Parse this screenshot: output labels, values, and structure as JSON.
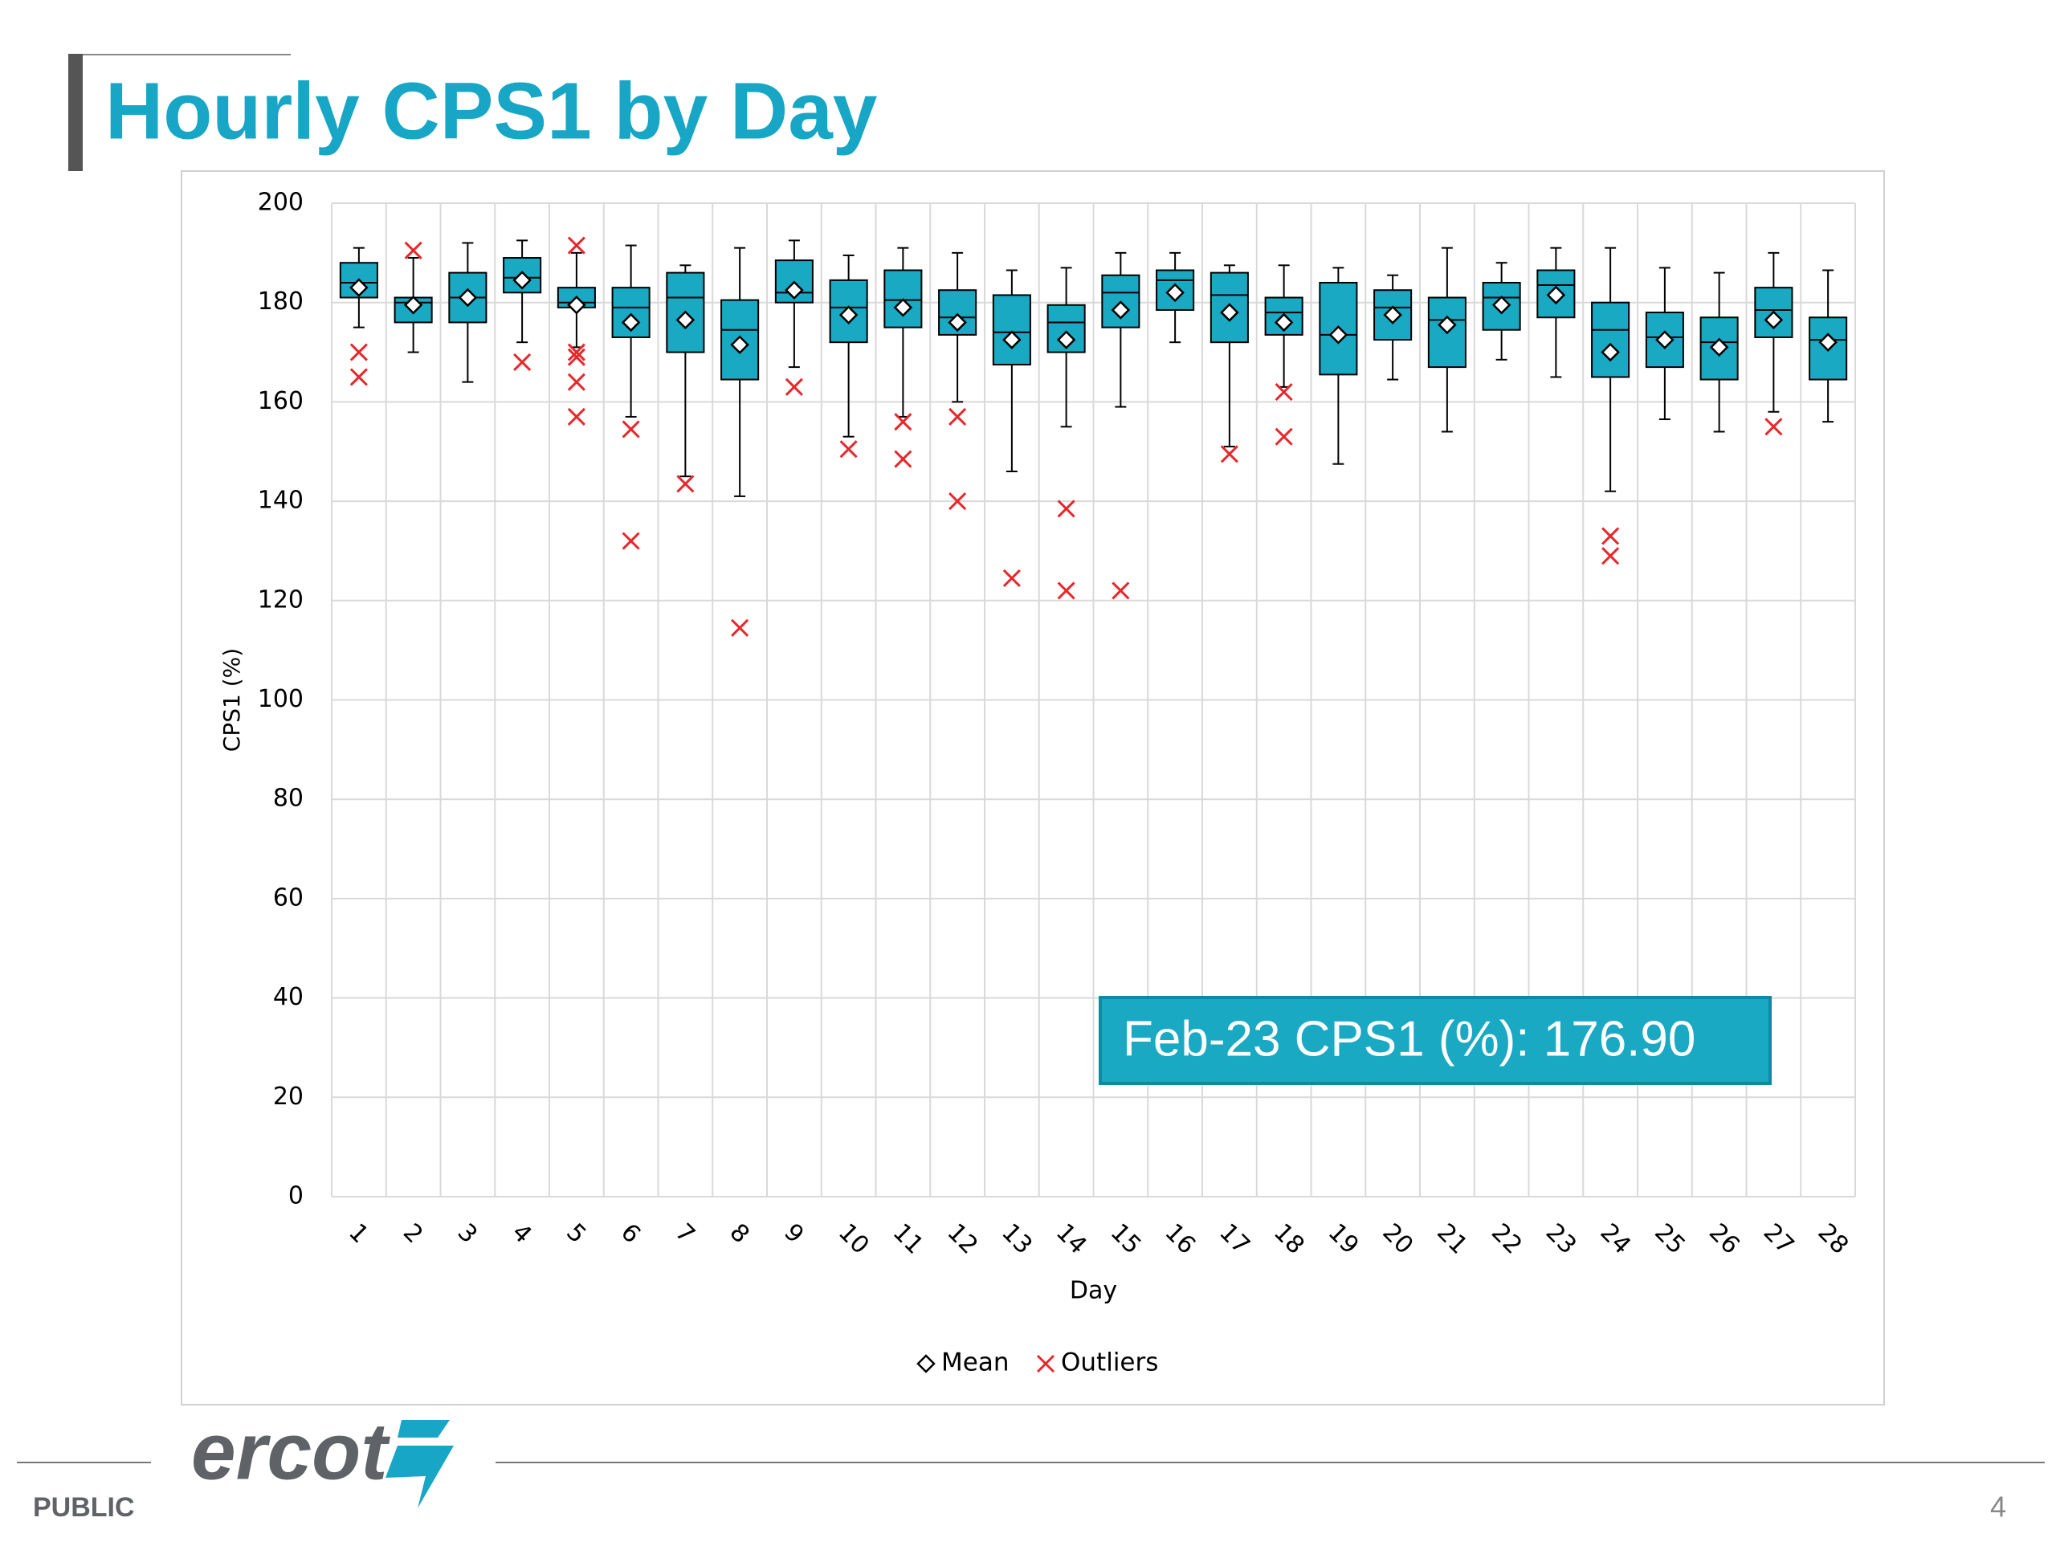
{
  "header": {
    "title": "Hourly CPS1 by Day"
  },
  "chart_data": {
    "type": "box",
    "x_label": "Day",
    "y_label": "CPS1 (%)",
    "categories": [
      "1",
      "2",
      "3",
      "4",
      "5",
      "6",
      "7",
      "8",
      "9",
      "10",
      "11",
      "12",
      "13",
      "14",
      "15",
      "16",
      "17",
      "18",
      "19",
      "20",
      "21",
      "22",
      "23",
      "24",
      "25",
      "26",
      "27",
      "28"
    ],
    "boxes": [
      {
        "min": 175,
        "q1": 181,
        "median": 184,
        "q3": 188,
        "max": 191,
        "mean": 183,
        "outliers": [
          170,
          165
        ]
      },
      {
        "min": 170,
        "q1": 176,
        "median": 180,
        "q3": 181,
        "max": 189,
        "mean": 179.5,
        "outliers": [
          190.5
        ]
      },
      {
        "min": 164,
        "q1": 176,
        "median": 181,
        "q3": 186,
        "max": 192,
        "mean": 181,
        "outliers": []
      },
      {
        "min": 172,
        "q1": 182,
        "median": 185,
        "q3": 189,
        "max": 192.5,
        "mean": 184.5,
        "outliers": [
          168
        ]
      },
      {
        "min": 171,
        "q1": 179,
        "median": 180,
        "q3": 183,
        "max": 190,
        "mean": 179.5,
        "outliers": [
          191.5,
          170,
          169,
          164,
          157
        ]
      },
      {
        "min": 157,
        "q1": 173,
        "median": 179,
        "q3": 183,
        "max": 191.5,
        "mean": 176,
        "outliers": [
          154.5,
          132
        ]
      },
      {
        "min": 145,
        "q1": 170,
        "median": 181,
        "q3": 186,
        "max": 187.5,
        "mean": 176.5,
        "outliers": [
          143.5
        ]
      },
      {
        "min": 141,
        "q1": 164.5,
        "median": 174.5,
        "q3": 180.5,
        "max": 191,
        "mean": 171.5,
        "outliers": [
          114.5
        ]
      },
      {
        "min": 167,
        "q1": 180,
        "median": 182,
        "q3": 188.5,
        "max": 192.5,
        "mean": 182.5,
        "outliers": [
          163
        ]
      },
      {
        "min": 153,
        "q1": 172,
        "median": 179,
        "q3": 184.5,
        "max": 189.5,
        "mean": 177.5,
        "outliers": [
          150.5
        ]
      },
      {
        "min": 157,
        "q1": 175,
        "median": 180.5,
        "q3": 186.5,
        "max": 191,
        "mean": 179,
        "outliers": [
          156,
          148.5
        ]
      },
      {
        "min": 160,
        "q1": 173.5,
        "median": 177,
        "q3": 182.5,
        "max": 190,
        "mean": 176,
        "outliers": [
          157,
          140
        ]
      },
      {
        "min": 146,
        "q1": 167.5,
        "median": 174,
        "q3": 181.5,
        "max": 186.5,
        "mean": 172.5,
        "outliers": [
          124.5
        ]
      },
      {
        "min": 155,
        "q1": 170,
        "median": 176,
        "q3": 179.5,
        "max": 187,
        "mean": 172.5,
        "outliers": [
          138.5,
          122
        ]
      },
      {
        "min": 159,
        "q1": 175,
        "median": 182,
        "q3": 185.5,
        "max": 190,
        "mean": 178.5,
        "outliers": [
          122
        ]
      },
      {
        "min": 172,
        "q1": 178.5,
        "median": 184.5,
        "q3": 186.5,
        "max": 190,
        "mean": 182,
        "outliers": []
      },
      {
        "min": 151,
        "q1": 172,
        "median": 181.5,
        "q3": 186,
        "max": 187.5,
        "mean": 178,
        "outliers": [
          149.5
        ]
      },
      {
        "min": 163,
        "q1": 173.5,
        "median": 178,
        "q3": 181,
        "max": 187.5,
        "mean": 176,
        "outliers": [
          162,
          153
        ]
      },
      {
        "min": 147.5,
        "q1": 165.5,
        "median": 173.5,
        "q3": 184,
        "max": 187,
        "mean": 173.5,
        "outliers": []
      },
      {
        "min": 164.5,
        "q1": 172.5,
        "median": 179,
        "q3": 182.5,
        "max": 185.5,
        "mean": 177.5,
        "outliers": []
      },
      {
        "min": 154,
        "q1": 167,
        "median": 176.5,
        "q3": 181,
        "max": 191,
        "mean": 175.5,
        "outliers": []
      },
      {
        "min": 168.5,
        "q1": 174.5,
        "median": 181,
        "q3": 184,
        "max": 188,
        "mean": 179.5,
        "outliers": []
      },
      {
        "min": 165,
        "q1": 177,
        "median": 183.5,
        "q3": 186.5,
        "max": 191,
        "mean": 181.5,
        "outliers": []
      },
      {
        "min": 142,
        "q1": 165,
        "median": 174.5,
        "q3": 180,
        "max": 191,
        "mean": 170,
        "outliers": [
          133,
          129
        ]
      },
      {
        "min": 156.5,
        "q1": 167,
        "median": 173,
        "q3": 178,
        "max": 187,
        "mean": 172.5,
        "outliers": []
      },
      {
        "min": 154,
        "q1": 164.5,
        "median": 172,
        "q3": 177,
        "max": 186,
        "mean": 171,
        "outliers": []
      },
      {
        "min": 158,
        "q1": 173,
        "median": 178.5,
        "q3": 183,
        "max": 190,
        "mean": 176.5,
        "outliers": [
          155
        ]
      },
      {
        "min": 156,
        "q1": 164.5,
        "median": 172.5,
        "q3": 177,
        "max": 186.5,
        "mean": 172,
        "outliers": []
      }
    ],
    "box_color": "#19a9c3",
    "outlier_color": "#e8272b",
    "legend": [
      "Mean",
      "Outliers"
    ],
    "ylim": [
      0,
      200
    ],
    "yticks": [
      0,
      20,
      40,
      60,
      80,
      100,
      120,
      140,
      160,
      180,
      200
    ],
    "grid": true,
    "annotation": "Feb-23 CPS1 (%): 176.90"
  },
  "footer": {
    "logo": "ercot",
    "classification": "PUBLIC",
    "page_number": "4"
  }
}
